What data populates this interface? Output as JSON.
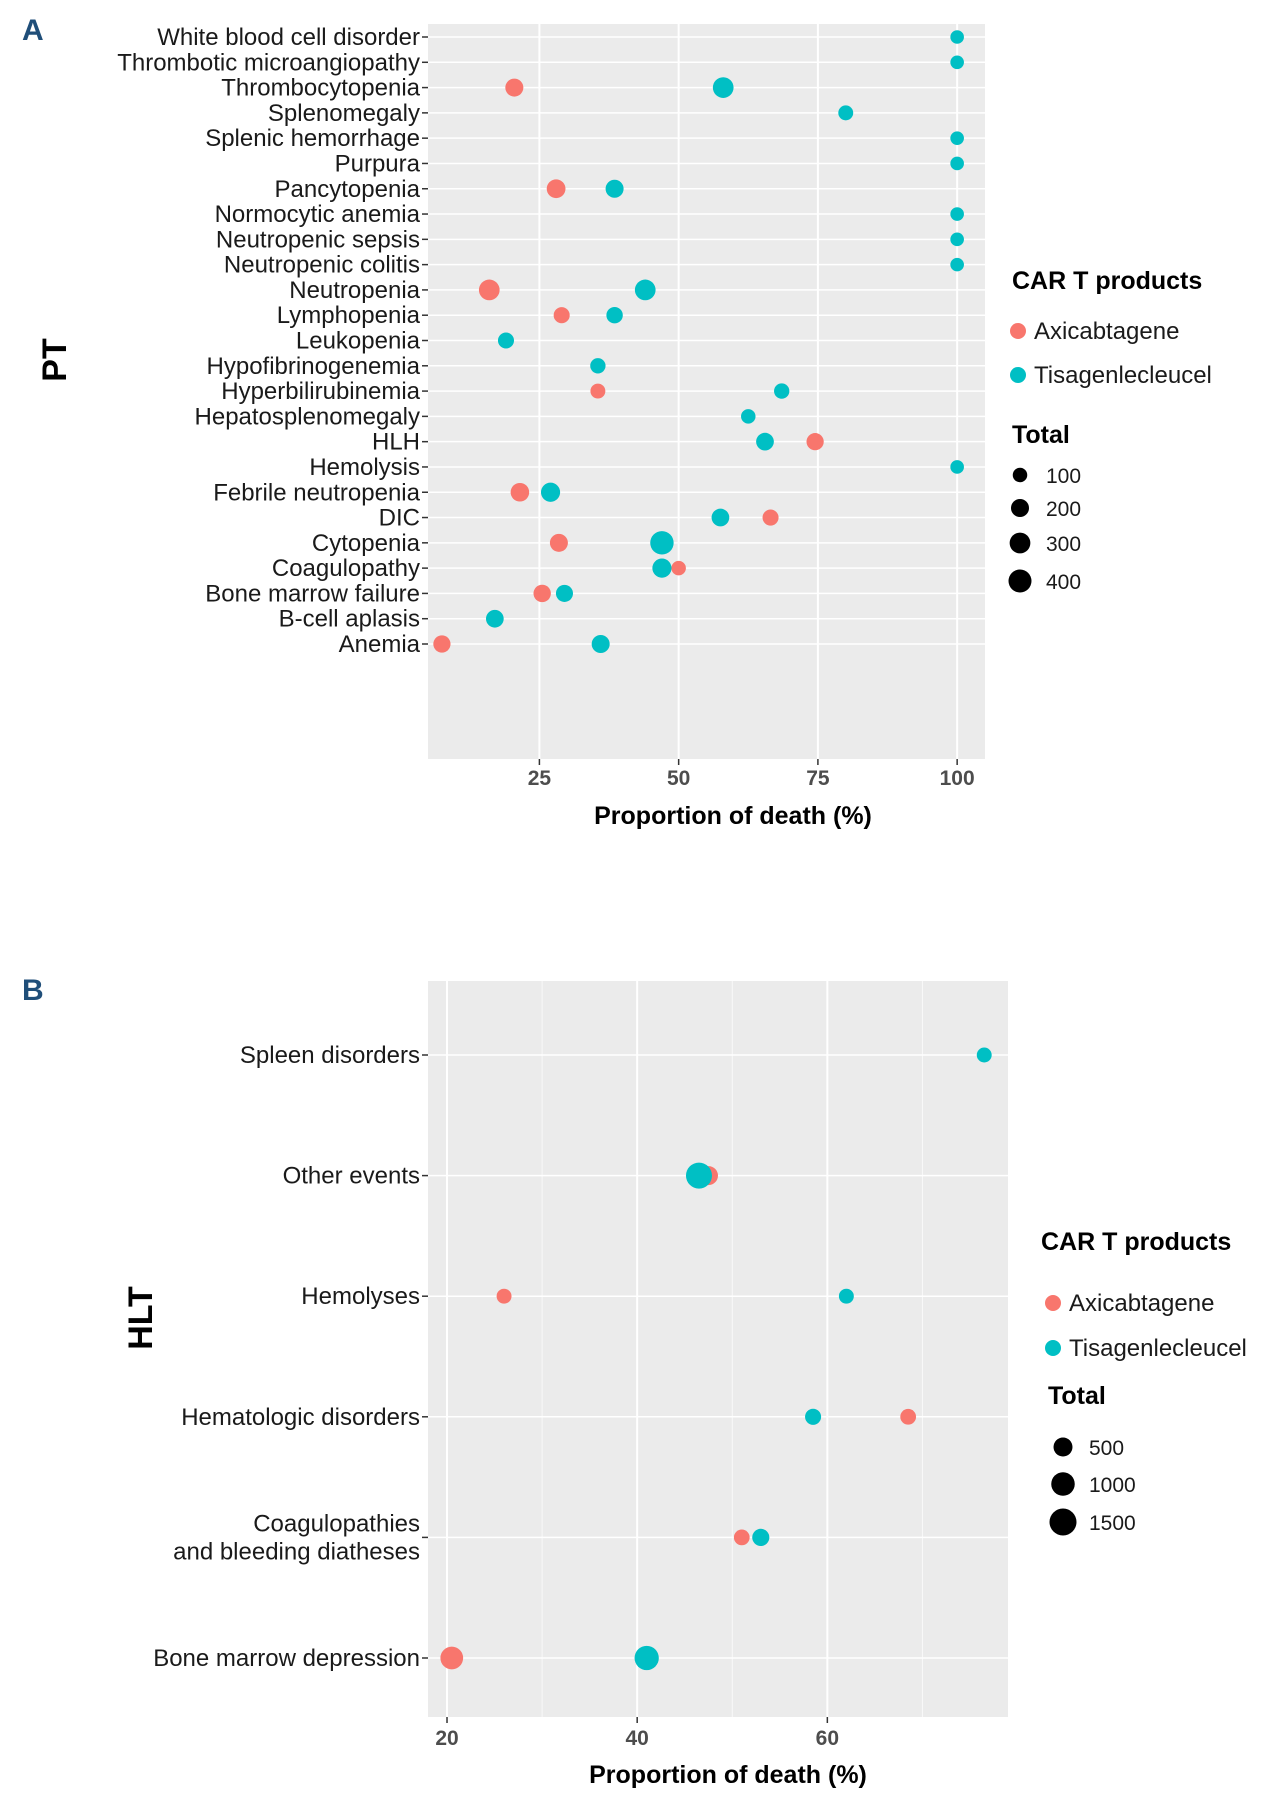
{
  "colors": {
    "Axicabtagene": "#f8766d",
    "Tisagenlecleucel": "#00bfc4",
    "panel_bg": "#ebebeb",
    "grid": "#ffffff",
    "panel_letter": "#1f4e79"
  },
  "chart_data": [
    {
      "panel": "A",
      "type": "scatter",
      "title": "",
      "xlabel": "Proportion of death (%)",
      "ylabel": "PT",
      "xlim": [
        5,
        105
      ],
      "x_ticks": [
        25,
        50,
        75,
        100
      ],
      "x_tick_labels": [
        "25",
        "50",
        "75",
        "100"
      ],
      "categories": [
        "White blood cell disorder",
        "Thrombotic microangiopathy",
        "Thrombocytopenia",
        "Splenomegaly",
        "Splenic  hemorrhage",
        "Purpura",
        "Pancytopenia",
        "Normocytic anemia",
        "Neutropenic sepsis",
        "Neutropenic colitis",
        "Neutropenia",
        "Lymphopenia",
        "Leukopenia",
        "Hypofibrinogenemia",
        "Hyperbilirubinemia",
        "Hepatosplenomegaly",
        "HLH",
        "Hemolysis",
        "Febrile neutropenia",
        "DIC",
        "Cytopenia",
        "Coagulopathy",
        "Bone marrow failure",
        "B-cell aplasis",
        "Anemia"
      ],
      "legend": {
        "color_title": "CAR T products",
        "color_items": [
          "Axicabtagene",
          "Tisagenlecleucel"
        ],
        "size_title": "Total",
        "size_items": [
          100,
          200,
          300,
          400
        ],
        "size_labels": [
          "100",
          "200",
          "300",
          "400"
        ]
      },
      "size_max": 400,
      "series": [
        {
          "name": "Axicabtagene",
          "points": [
            {
              "category": "Thrombocytopenia",
              "x": 20.5,
              "total": 200
            },
            {
              "category": "Pancytopenia",
              "x": 28,
              "total": 225
            },
            {
              "category": "Neutropenia",
              "x": 16,
              "total": 300
            },
            {
              "category": "Lymphopenia",
              "x": 29,
              "total": 140
            },
            {
              "category": "Hyperbilirubinemia",
              "x": 35.5,
              "total": 110
            },
            {
              "category": "HLH",
              "x": 74.5,
              "total": 175
            },
            {
              "category": "Febrile neutropenia",
              "x": 21.5,
              "total": 220
            },
            {
              "category": "DIC",
              "x": 66.5,
              "total": 140
            },
            {
              "category": "Cytopenia",
              "x": 28.5,
              "total": 200
            },
            {
              "category": "Coagulopathy",
              "x": 50,
              "total": 100
            },
            {
              "category": "Bone marrow failure",
              "x": 25.5,
              "total": 180
            },
            {
              "category": "Anemia",
              "x": 7.5,
              "total": 175
            }
          ]
        },
        {
          "name": "Tisagenlecleucel",
          "points": [
            {
              "category": "White blood cell disorder",
              "x": 100,
              "total": 80
            },
            {
              "category": "Thrombotic microangiopathy",
              "x": 100,
              "total": 80
            },
            {
              "category": "Thrombocytopenia",
              "x": 58,
              "total": 300
            },
            {
              "category": "Splenomegaly",
              "x": 80,
              "total": 110
            },
            {
              "category": "Splenic  hemorrhage",
              "x": 100,
              "total": 80
            },
            {
              "category": "Purpura",
              "x": 100,
              "total": 80
            },
            {
              "category": "Pancytopenia",
              "x": 38.5,
              "total": 200
            },
            {
              "category": "Normocytic anemia",
              "x": 100,
              "total": 80
            },
            {
              "category": "Neutropenic sepsis",
              "x": 100,
              "total": 80
            },
            {
              "category": "Neutropenic colitis",
              "x": 100,
              "total": 80
            },
            {
              "category": "Neutropenia",
              "x": 44,
              "total": 300
            },
            {
              "category": "Lymphopenia",
              "x": 38.5,
              "total": 150
            },
            {
              "category": "Leukopenia",
              "x": 19,
              "total": 140
            },
            {
              "category": "Hypofibrinogenemia",
              "x": 35.5,
              "total": 120
            },
            {
              "category": "Hyperbilirubinemia",
              "x": 68.5,
              "total": 120
            },
            {
              "category": "Hepatosplenomegaly",
              "x": 62.5,
              "total": 100
            },
            {
              "category": "HLH",
              "x": 65.5,
              "total": 190
            },
            {
              "category": "Hemolysis",
              "x": 100,
              "total": 80
            },
            {
              "category": "Febrile neutropenia",
              "x": 27,
              "total": 240
            },
            {
              "category": "DIC",
              "x": 57.5,
              "total": 190
            },
            {
              "category": "Cytopenia",
              "x": 47,
              "total": 420
            },
            {
              "category": "Coagulopathy",
              "x": 47,
              "total": 240
            },
            {
              "category": "Bone marrow failure",
              "x": 29.5,
              "total": 170
            },
            {
              "category": "B-cell aplasis",
              "x": 17,
              "total": 190
            },
            {
              "category": "Anemia",
              "x": 36,
              "total": 200
            }
          ]
        }
      ]
    },
    {
      "panel": "B",
      "type": "scatter",
      "title": "",
      "xlabel": "Proportion of death (%)",
      "ylabel": "HLT",
      "xlim": [
        18,
        79
      ],
      "x_ticks": [
        20,
        40,
        60
      ],
      "x_tick_labels": [
        "20",
        "40",
        "60"
      ],
      "minor_x_ticks": [
        30,
        50,
        70
      ],
      "categories": [
        "Spleen disorders",
        "Other events",
        "Hemolyses",
        "Hematologic disorders",
        "Coagulopathies\nand bleeding diatheses",
        "Bone marrow depression"
      ],
      "legend": {
        "color_title": "CAR T products",
        "color_items": [
          "Axicabtagene",
          "Tisagenlecleucel"
        ],
        "size_title": "Total",
        "size_items": [
          500,
          1000,
          1500
        ],
        "size_labels": [
          "500",
          "1000",
          "1500"
        ]
      },
      "size_max": 1500,
      "series": [
        {
          "name": "Axicabtagene",
          "points": [
            {
              "category": "Other events",
              "x": 47.5,
              "total": 500
            },
            {
              "category": "Hemolyses",
              "x": 26,
              "total": 200
            },
            {
              "category": "Hematologic disorders",
              "x": 68.5,
              "total": 250
            },
            {
              "category": "Coagulopathies\nand bleeding diatheses",
              "x": 51,
              "total": 250
            },
            {
              "category": "Bone marrow depression",
              "x": 20.5,
              "total": 900
            }
          ]
        },
        {
          "name": "Tisagenlecleucel",
          "points": [
            {
              "category": "Spleen disorders",
              "x": 76.5,
              "total": 200
            },
            {
              "category": "Other events",
              "x": 46.5,
              "total": 1350
            },
            {
              "category": "Hemolyses",
              "x": 62,
              "total": 200
            },
            {
              "category": "Hematologic disorders",
              "x": 58.5,
              "total": 270
            },
            {
              "category": "Coagulopathies\nand bleeding diatheses",
              "x": 53,
              "total": 350
            },
            {
              "category": "Bone marrow depression",
              "x": 41,
              "total": 1100
            }
          ]
        }
      ]
    }
  ]
}
